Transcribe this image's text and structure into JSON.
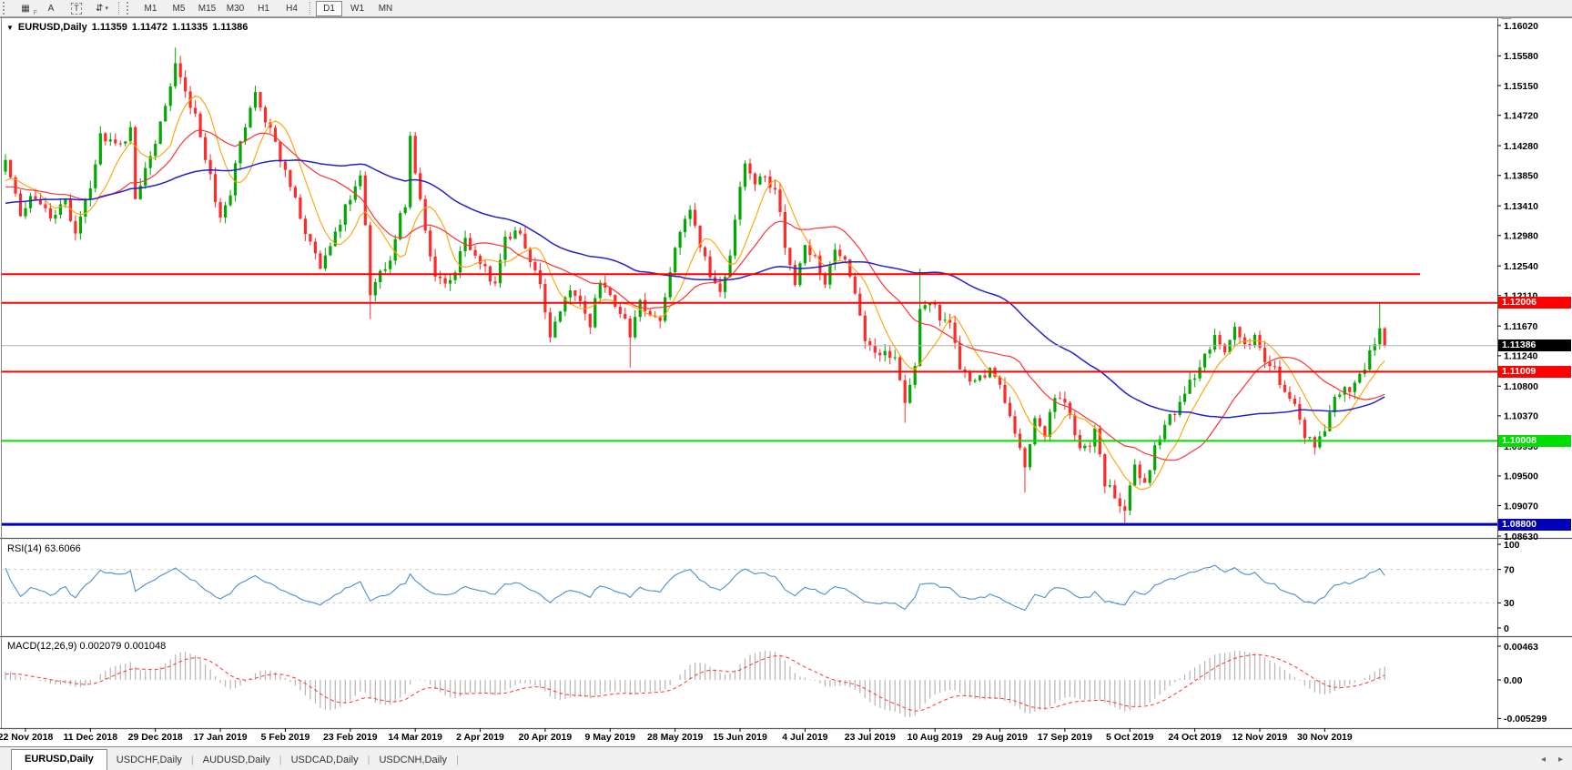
{
  "toolbar": {
    "tools": [
      {
        "name": "grid-f-icon",
        "glyph": "▦",
        "sub": "F"
      },
      {
        "name": "font-label-icon",
        "glyph": "A"
      },
      {
        "name": "textbox-icon",
        "glyph": "T",
        "boxed": true
      },
      {
        "name": "arrow-style-icon",
        "glyph": "⇵",
        "caret": "▾"
      }
    ],
    "timeframe_groups": [
      [
        "M1",
        "M5",
        "M15",
        "M30",
        "H1",
        "H4"
      ],
      [
        "D1",
        "W1",
        "MN"
      ]
    ],
    "active_timeframe": "D1"
  },
  "chart": {
    "dropdown_icon": "▼",
    "symbol_title": "EURUSD,Daily",
    "open": "1.11359",
    "high": "1.11472",
    "low": "1.11335",
    "close": "1.11386"
  },
  "indicators": {
    "rsi": {
      "label": "RSI(14) 63.6066",
      "levels": [
        "100",
        "70",
        "30",
        "0"
      ],
      "level_values": [
        100,
        70,
        30,
        0
      ]
    },
    "macd": {
      "label": "MACD(12,26,9) 0.002079 0.001048",
      "scale": [
        "0.00463",
        "0.00",
        "-0.005299"
      ],
      "scale_values": [
        0.00463,
        0,
        -0.005299
      ]
    }
  },
  "tabs": {
    "items": [
      "EURUSD,Daily",
      "USDCHF,Daily",
      "AUDUSD,Daily",
      "USDCAD,Daily",
      "USDCNH,Daily"
    ],
    "active": "EURUSD,Daily",
    "scroll_left_icon": "◂",
    "scroll_right_icon": "▸"
  },
  "colors": {
    "up": "#00a800",
    "down": "#ff2a2a",
    "ma_fast": "#ffa200",
    "ma_mid": "#ff3333",
    "ma_slow": "#2222cc",
    "rsi_line": "#4a8fd0",
    "rsi_level": "#c8c8c8",
    "macd_hist": "#b4b4b4",
    "macd_signal": "#ff3333",
    "current_line": "#b0b0b0",
    "axis_text": "#000000",
    "resistance": "#ff0000",
    "support_green": "#00dd00",
    "support_blue": "#0000b8"
  },
  "chart_data": {
    "type": "candlestick",
    "title": "EURUSD,Daily",
    "ylim": [
      1.0846,
      1.1613
    ],
    "y_ticks": [
      "1.16020",
      "1.15580",
      "1.15150",
      "1.14720",
      "1.14280",
      "1.13850",
      "1.13410",
      "1.12980",
      "1.12540",
      "1.12110",
      "1.11670",
      "1.11240",
      "1.10800",
      "1.10370",
      "1.09930",
      "1.09500",
      "1.09070",
      "1.08630"
    ],
    "x_ticks": [
      "22 Nov 2018",
      "11 Dec 2018",
      "29 Dec 2018",
      "17 Jan 2019",
      "5 Feb 2019",
      "23 Feb 2019",
      "14 Mar 2019",
      "2 Apr 2019",
      "20 Apr 2019",
      "9 May 2019",
      "28 May 2019",
      "15 Jun 2019",
      "4 Jul 2019",
      "23 Jul 2019",
      "10 Aug 2019",
      "29 Aug 2019",
      "17 Sep 2019",
      "5 Oct 2019",
      "24 Oct 2019",
      "12 Nov 2019",
      "30 Nov 2019"
    ],
    "horizontal_lines": [
      {
        "price": 1.1242,
        "color": "#ff0000",
        "label": null,
        "width": 2,
        "x_end": 1560
      },
      {
        "price": 1.12006,
        "color": "#ff0000",
        "label": "1.12006",
        "width": 2
      },
      {
        "price": 1.11009,
        "color": "#ff0000",
        "label": "1.11009",
        "width": 2
      },
      {
        "price": 1.10008,
        "color": "#00dd00",
        "label": "1.10008",
        "width": 2
      },
      {
        "price": 1.088,
        "color": "#0000b8",
        "label": "1.08800",
        "width": 3
      }
    ],
    "current_price": {
      "value": "1.11386",
      "number": 1.11386,
      "box_color": "#000000"
    },
    "n_days": 277,
    "warmup_days": 60,
    "last_close": 1.11386,
    "ma_periods": {
      "fast": 8,
      "mid": 21,
      "slow": 55
    },
    "rsi_period": 14,
    "macd_periods": [
      12,
      26,
      9
    ],
    "anchors": [
      [
        -60,
        1.133
      ],
      [
        -50,
        1.1305
      ],
      [
        -40,
        1.1345
      ],
      [
        -30,
        1.1315
      ],
      [
        -20,
        1.1375
      ],
      [
        -10,
        1.135
      ],
      [
        -4,
        1.137
      ],
      [
        0,
        1.14
      ],
      [
        3,
        1.133
      ],
      [
        6,
        1.1358
      ],
      [
        9,
        1.1322
      ],
      [
        12,
        1.135
      ],
      [
        14,
        1.1302
      ],
      [
        17,
        1.1368
      ],
      [
        19,
        1.1442
      ],
      [
        22,
        1.1428
      ],
      [
        25,
        1.1448
      ],
      [
        26,
        1.1348
      ],
      [
        28,
        1.1395
      ],
      [
        30,
        1.1438
      ],
      [
        32,
        1.1478
      ],
      [
        34,
        1.1548
      ],
      [
        35,
        1.1528
      ],
      [
        38,
        1.1468
      ],
      [
        41,
        1.1382
      ],
      [
        43,
        1.1322
      ],
      [
        45,
        1.1362
      ],
      [
        47,
        1.1438
      ],
      [
        49,
        1.1482
      ],
      [
        50,
        1.1508
      ],
      [
        53,
        1.1448
      ],
      [
        56,
        1.1392
      ],
      [
        58,
        1.135
      ],
      [
        60,
        1.13
      ],
      [
        63,
        1.1248
      ],
      [
        65,
        1.128
      ],
      [
        67,
        1.132
      ],
      [
        69,
        1.1355
      ],
      [
        71,
        1.139
      ],
      [
        72,
        1.131
      ],
      [
        73,
        1.121
      ],
      [
        75,
        1.124
      ],
      [
        77,
        1.1258
      ],
      [
        79,
        1.133
      ],
      [
        80,
        1.134
      ],
      [
        81,
        1.1438
      ],
      [
        82,
        1.139
      ],
      [
        84,
        1.1305
      ],
      [
        86,
        1.1238
      ],
      [
        88,
        1.1222
      ],
      [
        90,
        1.1248
      ],
      [
        92,
        1.1288
      ],
      [
        95,
        1.1262
      ],
      [
        98,
        1.1228
      ],
      [
        100,
        1.1298
      ],
      [
        103,
        1.1302
      ],
      [
        105,
        1.1262
      ],
      [
        107,
        1.1222
      ],
      [
        109,
        1.1158
      ],
      [
        111,
        1.1182
      ],
      [
        113,
        1.1222
      ],
      [
        115,
        1.1198
      ],
      [
        117,
        1.1172
      ],
      [
        119,
        1.1232
      ],
      [
        121,
        1.1212
      ],
      [
        123,
        1.1188
      ],
      [
        125,
        1.1158
      ],
      [
        127,
        1.1198
      ],
      [
        129,
        1.1182
      ],
      [
        131,
        1.1168
      ],
      [
        133,
        1.1248
      ],
      [
        135,
        1.1298
      ],
      [
        137,
        1.1332
      ],
      [
        139,
        1.1282
      ],
      [
        141,
        1.1242
      ],
      [
        143,
        1.1218
      ],
      [
        145,
        1.1272
      ],
      [
        147,
        1.1368
      ],
      [
        148,
        1.1398
      ],
      [
        150,
        1.1372
      ],
      [
        152,
        1.1388
      ],
      [
        154,
        1.1362
      ],
      [
        156,
        1.1288
      ],
      [
        158,
        1.1222
      ],
      [
        160,
        1.1278
      ],
      [
        162,
        1.1268
      ],
      [
        164,
        1.1228
      ],
      [
        166,
        1.1278
      ],
      [
        168,
        1.1268
      ],
      [
        170,
        1.1218
      ],
      [
        172,
        1.1152
      ],
      [
        174,
        1.1122
      ],
      [
        176,
        1.1138
      ],
      [
        178,
        1.1118
      ],
      [
        180,
        1.1048
      ],
      [
        182,
        1.1108
      ],
      [
        183,
        1.1198
      ],
      [
        185,
        1.1202
      ],
      [
        187,
        1.1182
      ],
      [
        189,
        1.1168
      ],
      [
        191,
        1.1102
      ],
      [
        193,
        1.1092
      ],
      [
        195,
        1.1098
      ],
      [
        197,
        1.1102
      ],
      [
        199,
        1.1078
      ],
      [
        201,
        1.1042
      ],
      [
        203,
        1.0992
      ],
      [
        204,
        1.0968
      ],
      [
        206,
        1.1032
      ],
      [
        208,
        1.1008
      ],
      [
        210,
        1.1068
      ],
      [
        212,
        1.1062
      ],
      [
        214,
        1.1002
      ],
      [
        216,
        1.0988
      ],
      [
        218,
        1.1012
      ],
      [
        220,
        1.0942
      ],
      [
        222,
        1.0922
      ],
      [
        224,
        1.0898
      ],
      [
        226,
        1.0962
      ],
      [
        228,
        1.0938
      ],
      [
        230,
        1.0988
      ],
      [
        232,
        1.1022
      ],
      [
        234,
        1.1042
      ],
      [
        236,
        1.1072
      ],
      [
        238,
        1.1092
      ],
      [
        240,
        1.1128
      ],
      [
        242,
        1.1148
      ],
      [
        244,
        1.1122
      ],
      [
        246,
        1.1158
      ],
      [
        248,
        1.1138
      ],
      [
        250,
        1.1152
      ],
      [
        252,
        1.1112
      ],
      [
        254,
        1.1102
      ],
      [
        256,
        1.1072
      ],
      [
        258,
        1.1058
      ],
      [
        260,
        1.1012
      ],
      [
        262,
        1.0988
      ],
      [
        264,
        1.1018
      ],
      [
        266,
        1.1072
      ],
      [
        268,
        1.1078
      ],
      [
        270,
        1.1078
      ],
      [
        272,
        1.1108
      ],
      [
        274,
        1.1148
      ],
      [
        275,
        1.1168
      ],
      [
        276,
        1.11386
      ]
    ],
    "wick_overrides": {
      "34": {
        "high": 1.157
      },
      "73": {
        "low": 1.1177
      },
      "81": {
        "high": 1.1448
      },
      "125": {
        "low": 1.1107
      },
      "180": {
        "low": 1.1027
      },
      "183": {
        "high": 1.125
      },
      "204": {
        "low": 1.0926
      },
      "224": {
        "low": 1.0879
      },
      "262": {
        "low": 1.0981
      },
      "275": {
        "high": 1.12
      }
    }
  }
}
